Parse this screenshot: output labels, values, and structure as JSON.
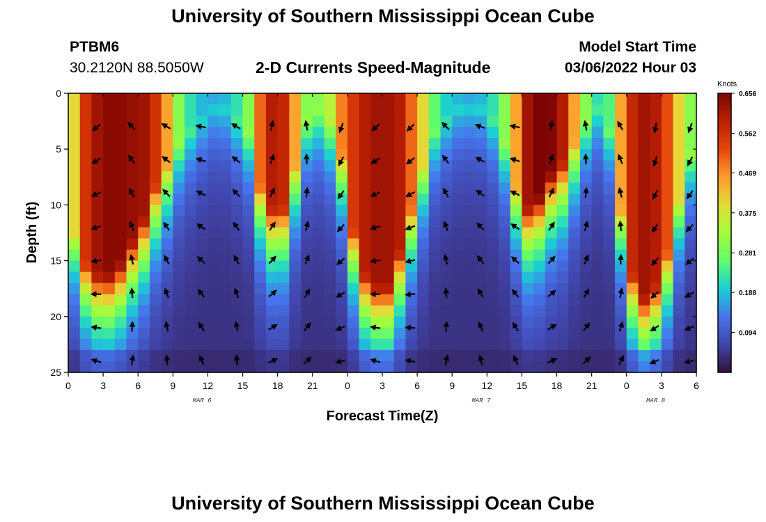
{
  "header": {
    "title_top": "University of Southern Mississippi Ocean Cube",
    "title_bottom": "University of Southern Mississippi Ocean Cube",
    "station": "PTBM6",
    "coords": "30.2120N  88.5050W",
    "subtitle": "2-D Currents Speed-Magnitude",
    "model_start_label": "Model Start Time",
    "model_start_value": "03/06/2022 Hour 03"
  },
  "chart_data": {
    "type": "heatmap",
    "title": "2-D Currents Speed-Magnitude",
    "xlabel": "Forecast Time(Z)",
    "ylabel": "Depth (ft)",
    "x_range_hours": [
      0,
      54
    ],
    "x_ticks": [
      "0",
      "3",
      "6",
      "9",
      "12",
      "15",
      "18",
      "21",
      "0",
      "3",
      "6",
      "9",
      "12",
      "15",
      "18",
      "21",
      "0",
      "3",
      "6"
    ],
    "date_labels": [
      {
        "label": "MAR 6",
        "hour": 11.5
      },
      {
        "label": "MAR 7",
        "hour": 35.5
      },
      {
        "label": "MAR 8",
        "hour": 50.5
      }
    ],
    "ylim": [
      0,
      25
    ],
    "y_ticks": [
      "0",
      "5",
      "10",
      "15",
      "20",
      "25"
    ],
    "colorbar": {
      "unit": "Knots",
      "min": 0,
      "max": 0.656,
      "ticks": [
        "0.656",
        "0.562",
        "0.469",
        "0.375",
        "0.281",
        "0.188",
        "0.094"
      ]
    },
    "speed_profile": {
      "description": "Per-time max speed (knots) and depth (ft) above which the core is strongest",
      "hours": [
        0,
        1,
        2,
        3,
        4,
        5,
        6,
        7,
        8,
        9,
        10,
        11,
        12,
        13,
        14,
        15,
        16,
        17,
        18,
        19,
        20,
        21,
        22,
        23,
        24,
        25,
        26,
        27,
        28,
        29,
        30,
        31,
        32,
        33,
        34,
        35,
        36,
        37,
        38,
        39,
        40,
        41,
        42,
        43,
        44,
        45,
        46,
        47,
        48,
        49,
        50,
        51,
        52,
        53,
        54
      ],
      "surface_speed": [
        0.4,
        0.56,
        0.62,
        0.64,
        0.64,
        0.63,
        0.62,
        0.56,
        0.45,
        0.3,
        0.22,
        0.18,
        0.17,
        0.18,
        0.22,
        0.3,
        0.5,
        0.6,
        0.58,
        0.45,
        0.3,
        0.3,
        0.35,
        0.48,
        0.55,
        0.6,
        0.62,
        0.62,
        0.6,
        0.5,
        0.4,
        0.26,
        0.2,
        0.18,
        0.17,
        0.18,
        0.22,
        0.3,
        0.45,
        0.62,
        0.66,
        0.65,
        0.6,
        0.45,
        0.3,
        0.22,
        0.25,
        0.45,
        0.58,
        0.62,
        0.6,
        0.52,
        0.4,
        0.3,
        0.25
      ],
      "core_depth": [
        12,
        15,
        16,
        16,
        15,
        13,
        11,
        8,
        6,
        4,
        3,
        2,
        1,
        1,
        2,
        3,
        8,
        10,
        10,
        6,
        2,
        1,
        2,
        5,
        12,
        16,
        17,
        17,
        14,
        10,
        6,
        3,
        2,
        1,
        1,
        1,
        2,
        4,
        8,
        10,
        9,
        7,
        6,
        4,
        2,
        1,
        3,
        10,
        16,
        18,
        17,
        14,
        9,
        5,
        3
      ]
    },
    "arrows": {
      "hours": [
        2.5,
        5.5,
        8.5,
        11.5,
        14.5,
        17.5,
        20.5,
        23.5,
        26.5,
        29.5,
        32.5,
        35.5,
        38.5,
        41.5,
        44.5,
        47.5,
        50.5,
        53.5
      ],
      "depths": [
        3,
        6,
        9,
        12,
        15,
        18,
        21,
        24
      ],
      "dir_deg_by_hour": [
        230,
        315,
        300,
        280,
        300,
        10,
        350,
        200,
        230,
        225,
        315,
        290,
        280,
        10,
        350,
        330,
        190,
        200
      ]
    }
  }
}
